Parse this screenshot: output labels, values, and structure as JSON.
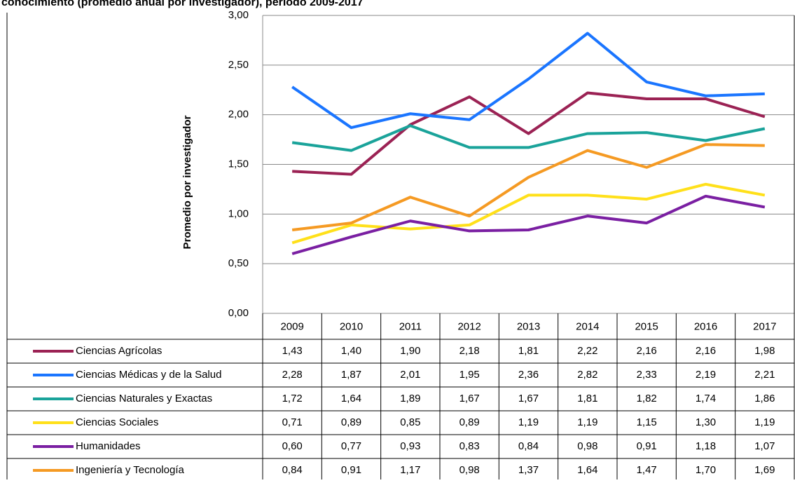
{
  "chart_data": {
    "type": "line",
    "title": "conocimiento (promedio anual por investigador), período 2009-2017",
    "y_label": "Promedio por  investigador",
    "categories": [
      "2009",
      "2010",
      "2011",
      "2012",
      "2013",
      "2014",
      "2015",
      "2016",
      "2017"
    ],
    "ylim": [
      0,
      3
    ],
    "yticks": [
      {
        "value": 0,
        "label": "0,00"
      },
      {
        "value": 0.5,
        "label": "0,50"
      },
      {
        "value": 1,
        "label": "1,00"
      },
      {
        "value": 1.5,
        "label": "1,50"
      },
      {
        "value": 2,
        "label": "2,00"
      },
      {
        "value": 2.5,
        "label": "2,50"
      },
      {
        "value": 3,
        "label": "3,00"
      }
    ],
    "grid": true,
    "series": [
      {
        "name": "Ciencias Agrícolas",
        "color": "#9b2254",
        "values": [
          1.43,
          1.4,
          1.9,
          2.18,
          1.81,
          2.22,
          2.16,
          2.16,
          1.98
        ],
        "value_labels": [
          "1,43",
          "1,40",
          "1,90",
          "2,18",
          "1,81",
          "2,22",
          "2,16",
          "2,16",
          "1,98"
        ]
      },
      {
        "name": "Ciencias Médicas y de la Salud",
        "color": "#1a75ff",
        "values": [
          2.28,
          1.87,
          2.01,
          1.95,
          2.36,
          2.82,
          2.33,
          2.19,
          2.21
        ],
        "value_labels": [
          "2,28",
          "1,87",
          "2,01",
          "1,95",
          "2,36",
          "2,82",
          "2,33",
          "2,19",
          "2,21"
        ]
      },
      {
        "name": "Ciencias Naturales y Exactas",
        "color": "#1aa39a",
        "values": [
          1.72,
          1.64,
          1.89,
          1.67,
          1.67,
          1.81,
          1.82,
          1.74,
          1.86
        ],
        "value_labels": [
          "1,72",
          "1,64",
          "1,89",
          "1,67",
          "1,67",
          "1,81",
          "1,82",
          "1,74",
          "1,86"
        ]
      },
      {
        "name": "Ciencias Sociales",
        "color": "#ffe01a",
        "values": [
          0.71,
          0.89,
          0.85,
          0.89,
          1.19,
          1.19,
          1.15,
          1.3,
          1.19
        ],
        "value_labels": [
          "0,71",
          "0,89",
          "0,85",
          "0,89",
          "1,19",
          "1,19",
          "1,15",
          "1,30",
          "1,19"
        ]
      },
      {
        "name": "Humanidades",
        "color": "#7a1fa2",
        "values": [
          0.6,
          0.77,
          0.93,
          0.83,
          0.84,
          0.98,
          0.91,
          1.18,
          1.07
        ],
        "value_labels": [
          "0,60",
          "0,77",
          "0,93",
          "0,83",
          "0,84",
          "0,98",
          "0,91",
          "1,18",
          "1,07"
        ]
      },
      {
        "name": "Ingeniería y Tecnología",
        "color": "#f59a23",
        "values": [
          0.84,
          0.91,
          1.17,
          0.98,
          1.37,
          1.64,
          1.47,
          1.7,
          1.69
        ],
        "value_labels": [
          "0,84",
          "0,91",
          "1,17",
          "0,98",
          "1,37",
          "1,64",
          "1,47",
          "1,70",
          "1,69"
        ]
      }
    ]
  }
}
